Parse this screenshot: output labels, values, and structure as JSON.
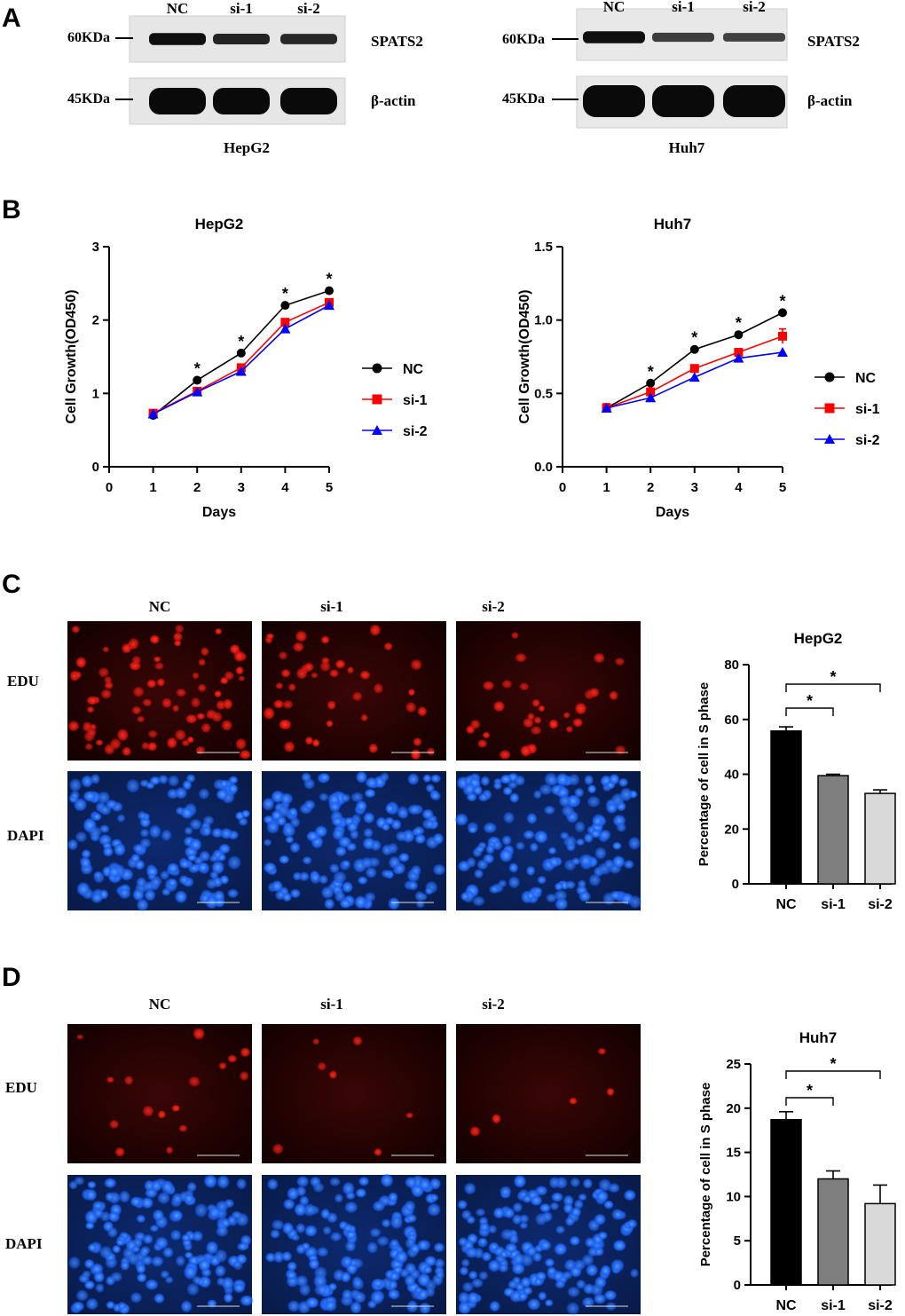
{
  "panels": {
    "A": {
      "letter": "A",
      "lane_labels": [
        "NC",
        "si-1",
        "si-2"
      ],
      "blots": [
        {
          "cell_line": "HepG2",
          "rows": [
            {
              "marker": "60KDa",
              "protein": "SPATS2",
              "band_intensity": [
                0.95,
                0.75,
                0.7
              ]
            },
            {
              "marker": "45KDa",
              "protein": "β-actin",
              "band_intensity": [
                1.0,
                1.0,
                1.0
              ]
            }
          ]
        },
        {
          "cell_line": "Huh7",
          "rows": [
            {
              "marker": "60KDa",
              "protein": "SPATS2",
              "band_intensity": [
                0.95,
                0.5,
                0.45
              ]
            },
            {
              "marker": "45KDa",
              "protein": "β-actin",
              "band_intensity": [
                1.0,
                1.0,
                1.0
              ]
            }
          ]
        }
      ]
    },
    "B": {
      "letter": "B"
    },
    "C": {
      "letter": "C",
      "row_labels": [
        "EDU",
        "DAPI"
      ],
      "col_labels": [
        "NC",
        "si-1",
        "si-2"
      ]
    },
    "D": {
      "letter": "D",
      "row_labels": [
        "EDU",
        "DAPI"
      ],
      "col_labels": [
        "NC",
        "si-1",
        "si-2"
      ]
    }
  },
  "chart_data": [
    {
      "id": "b-hepg2",
      "type": "line",
      "title": "HepG2",
      "xlabel": "Days",
      "ylabel": "Cell Growth(OD450)",
      "x": [
        1,
        2,
        3,
        4,
        5
      ],
      "xlim": [
        0,
        5
      ],
      "xticks": [
        "0",
        "1",
        "2",
        "3",
        "4",
        "5"
      ],
      "ylim": [
        0,
        3
      ],
      "yticks": [
        "0",
        "1",
        "2",
        "3"
      ],
      "series": [
        {
          "name": "NC",
          "color": "#000000",
          "marker": "circle",
          "values": [
            0.7,
            1.18,
            1.55,
            2.2,
            2.4
          ]
        },
        {
          "name": "si-1",
          "color": "#ff0000",
          "marker": "square",
          "values": [
            0.73,
            1.03,
            1.35,
            1.97,
            2.24
          ]
        },
        {
          "name": "si-2",
          "color": "#0000ff",
          "marker": "triangle",
          "values": [
            0.72,
            1.02,
            1.3,
            1.88,
            2.2
          ]
        }
      ],
      "significance": [
        "",
        "*",
        "*",
        "*",
        "*"
      ]
    },
    {
      "id": "b-huh7",
      "type": "line",
      "title": "Huh7",
      "xlabel": "Days",
      "ylabel": "Cell Growth(OD450)",
      "x": [
        1,
        2,
        3,
        4,
        5
      ],
      "xlim": [
        0,
        5
      ],
      "xticks": [
        "0",
        "1",
        "2",
        "3",
        "4",
        "5"
      ],
      "ylim": [
        0,
        1.5
      ],
      "yticks": [
        "0.0",
        "0.5",
        "1.0",
        "1.5"
      ],
      "series": [
        {
          "name": "NC",
          "color": "#000000",
          "marker": "circle",
          "values": [
            0.4,
            0.57,
            0.8,
            0.9,
            1.05
          ]
        },
        {
          "name": "si-1",
          "color": "#ff0000",
          "marker": "square",
          "values": [
            0.4,
            0.51,
            0.67,
            0.78,
            0.89
          ],
          "errors": [
            0.03,
            0.02,
            0.02,
            0.02,
            0.05
          ]
        },
        {
          "name": "si-2",
          "color": "#0000ff",
          "marker": "triangle",
          "values": [
            0.4,
            0.47,
            0.61,
            0.74,
            0.78
          ]
        }
      ],
      "significance": [
        "",
        "*",
        "*",
        "*",
        "*"
      ]
    },
    {
      "id": "c-bar",
      "type": "bar",
      "title": "HepG2",
      "ylabel": "Percentage of cell in S phase",
      "categories": [
        "NC",
        "si-1",
        "si-2"
      ],
      "values": [
        55.8,
        39.5,
        33.0
      ],
      "errors": [
        1.5,
        0.5,
        1.3
      ],
      "colors": [
        "#000000",
        "#7f7f7f",
        "#d9d9d9"
      ],
      "ylim": [
        0,
        80
      ],
      "yticks": [
        "0",
        "20",
        "40",
        "60",
        "80"
      ],
      "comparisons": [
        {
          "from": 0,
          "to": 1,
          "label": "*"
        },
        {
          "from": 0,
          "to": 2,
          "label": "*"
        }
      ]
    },
    {
      "id": "d-bar",
      "type": "bar",
      "title": "Huh7",
      "ylabel": "Percentage of cell in S phase",
      "categories": [
        "NC",
        "si-1",
        "si-2"
      ],
      "values": [
        18.7,
        12.0,
        9.2
      ],
      "errors": [
        0.9,
        0.9,
        2.1
      ],
      "colors": [
        "#000000",
        "#7f7f7f",
        "#d9d9d9"
      ],
      "ylim": [
        0,
        25
      ],
      "yticks": [
        "0",
        "5",
        "10",
        "15",
        "20",
        "25"
      ],
      "comparisons": [
        {
          "from": 0,
          "to": 1,
          "label": "*"
        },
        {
          "from": 0,
          "to": 2,
          "label": "*"
        }
      ]
    }
  ]
}
